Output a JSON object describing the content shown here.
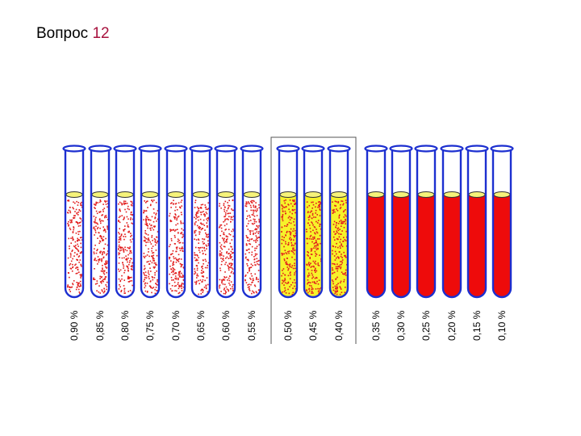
{
  "slide": {
    "title_word": "Вопрос",
    "title_number": "12"
  },
  "colors": {
    "tube_outline": "#1c2fd0",
    "blood_red": "#ee0b0b",
    "plasma_yellow": "#f7f22a",
    "dot_red": "#e21d1d",
    "meniscus": "#f6f37a",
    "frame_line": "#555555"
  },
  "tubes": [
    {
      "label": "0,90 %",
      "state": "cells"
    },
    {
      "label": "0,85 %",
      "state": "cells"
    },
    {
      "label": "0,80 %",
      "state": "cells"
    },
    {
      "label": "0,75 %",
      "state": "cells"
    },
    {
      "label": "0,70 %",
      "state": "cells"
    },
    {
      "label": "0,65 %",
      "state": "cells"
    },
    {
      "label": "0,60 %",
      "state": "cells"
    },
    {
      "label": "0,55 %",
      "state": "cells"
    },
    {
      "label": "0,50 %",
      "state": "partial"
    },
    {
      "label": "0,45 %",
      "state": "partial"
    },
    {
      "label": "0,40 %",
      "state": "partial"
    },
    {
      "label": "0,35 %",
      "state": "hemolysis"
    },
    {
      "label": "0,30 %",
      "state": "hemolysis"
    },
    {
      "label": "0,25 %",
      "state": "hemolysis"
    },
    {
      "label": "0,20 %",
      "state": "hemolysis"
    },
    {
      "label": "0,15 %",
      "state": "hemolysis"
    },
    {
      "label": "0,10 %",
      "state": "hemolysis"
    }
  ]
}
